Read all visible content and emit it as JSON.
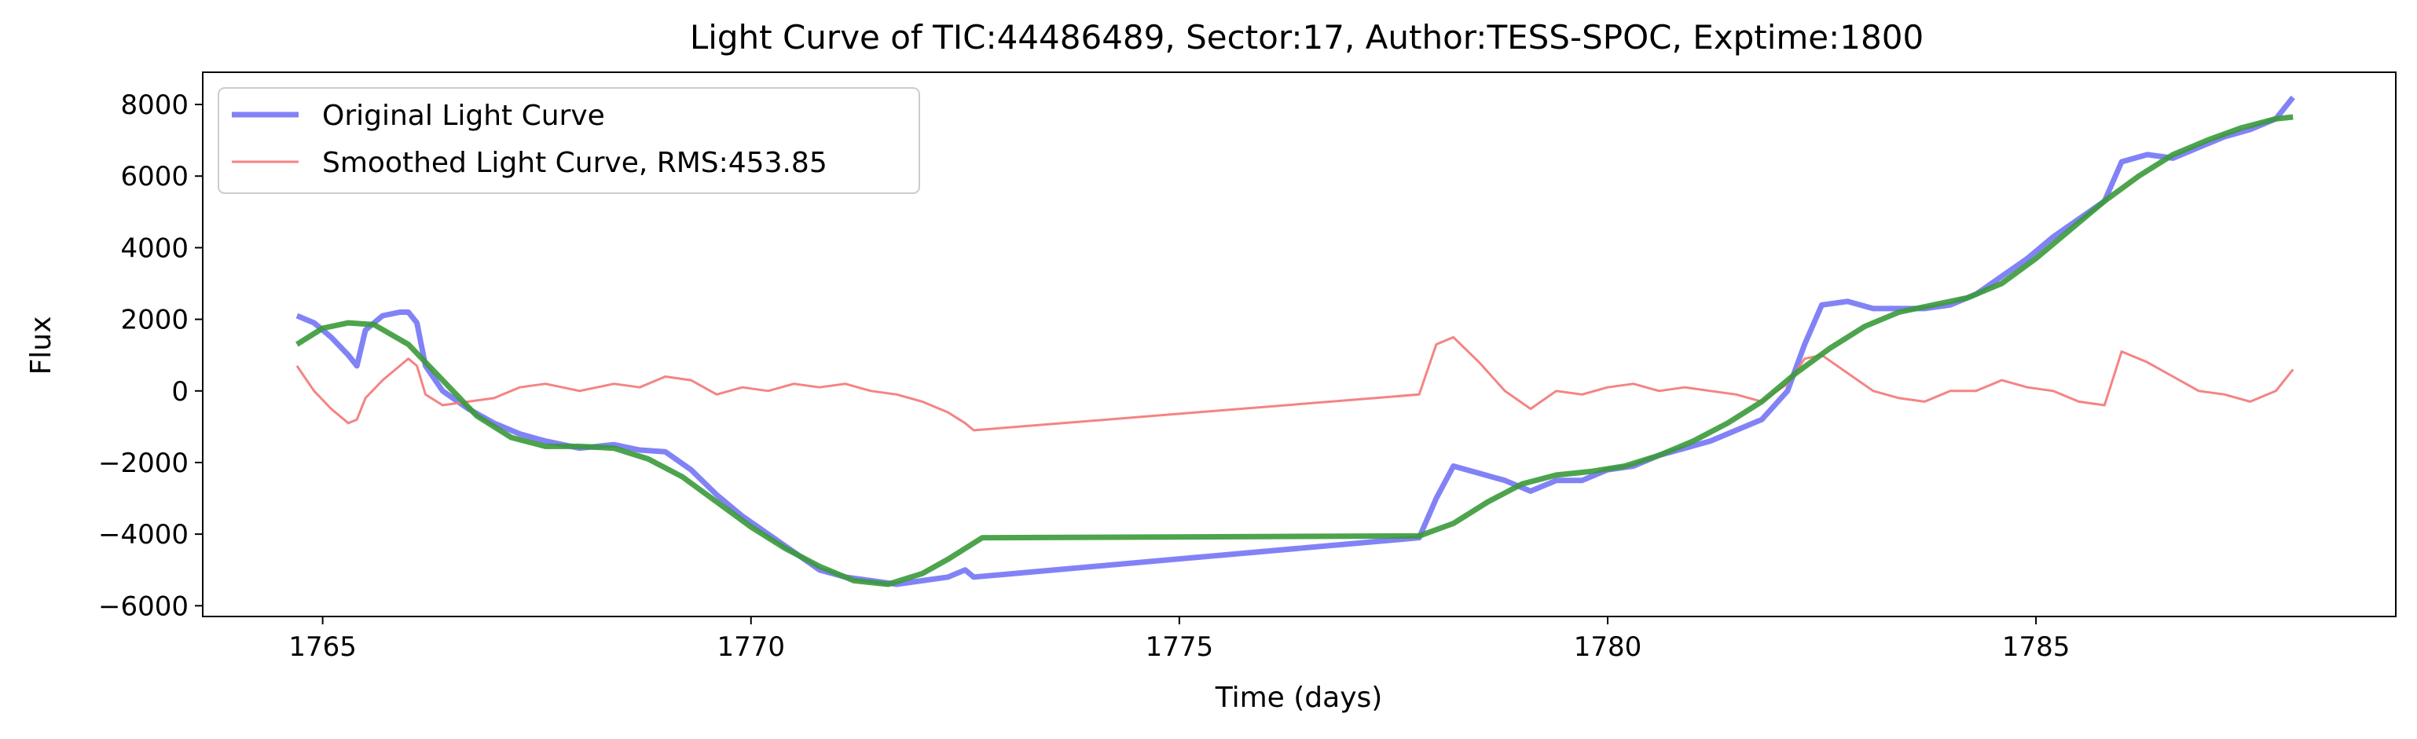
{
  "chart_data": {
    "type": "line",
    "title": "Light Curve of TIC:44486489, Sector:17, Author:TESS-SPOC, Exptime:1800",
    "xlabel": "Time (days)",
    "ylabel": "Flux",
    "xlim": [
      1763.6,
      1789.2
    ],
    "ylim": [
      -6300,
      8900
    ],
    "xticks": [
      1765,
      1770,
      1775,
      1780,
      1785
    ],
    "yticks": [
      -6000,
      -4000,
      -2000,
      0,
      2000,
      4000,
      6000,
      8000
    ],
    "grid": false,
    "legend_position": "top-left",
    "legend": [
      {
        "label": "Original Light Curve",
        "color": "#7b7bf7"
      },
      {
        "label": "Smoothed Light Curve, RMS:453.85",
        "color": "#f47c7c"
      }
    ],
    "series": [
      {
        "name": "Original Light Curve",
        "color": "#7b7bf7",
        "points": [
          [
            1764.7,
            2100
          ],
          [
            1764.9,
            1900
          ],
          [
            1765.1,
            1500
          ],
          [
            1765.3,
            1000
          ],
          [
            1765.4,
            700
          ],
          [
            1765.5,
            1700
          ],
          [
            1765.7,
            2100
          ],
          [
            1765.9,
            2200
          ],
          [
            1766.0,
            2200
          ],
          [
            1766.1,
            1900
          ],
          [
            1766.2,
            700
          ],
          [
            1766.4,
            0
          ],
          [
            1766.7,
            -500
          ],
          [
            1767.0,
            -900
          ],
          [
            1767.3,
            -1200
          ],
          [
            1767.6,
            -1400
          ],
          [
            1768.0,
            -1600
          ],
          [
            1768.4,
            -1500
          ],
          [
            1768.7,
            -1650
          ],
          [
            1769.0,
            -1700
          ],
          [
            1769.3,
            -2200
          ],
          [
            1769.6,
            -2900
          ],
          [
            1769.9,
            -3500
          ],
          [
            1770.2,
            -4000
          ],
          [
            1770.5,
            -4500
          ],
          [
            1770.8,
            -5000
          ],
          [
            1771.1,
            -5200
          ],
          [
            1771.4,
            -5300
          ],
          [
            1771.7,
            -5400
          ],
          [
            1772.0,
            -5300
          ],
          [
            1772.3,
            -5200
          ],
          [
            1772.5,
            -5000
          ],
          [
            1772.6,
            -5200
          ],
          [
            1777.8,
            -4100
          ],
          [
            1778.0,
            -3000
          ],
          [
            1778.2,
            -2100
          ],
          [
            1778.5,
            -2300
          ],
          [
            1778.8,
            -2500
          ],
          [
            1779.1,
            -2800
          ],
          [
            1779.4,
            -2500
          ],
          [
            1779.7,
            -2500
          ],
          [
            1780.0,
            -2200
          ],
          [
            1780.3,
            -2100
          ],
          [
            1780.6,
            -1800
          ],
          [
            1780.9,
            -1600
          ],
          [
            1781.2,
            -1400
          ],
          [
            1781.5,
            -1100
          ],
          [
            1781.8,
            -800
          ],
          [
            1782.1,
            0
          ],
          [
            1782.3,
            1300
          ],
          [
            1782.5,
            2400
          ],
          [
            1782.8,
            2500
          ],
          [
            1783.1,
            2300
          ],
          [
            1783.4,
            2300
          ],
          [
            1783.7,
            2300
          ],
          [
            1784.0,
            2400
          ],
          [
            1784.3,
            2700
          ],
          [
            1784.6,
            3200
          ],
          [
            1784.9,
            3700
          ],
          [
            1785.2,
            4300
          ],
          [
            1785.5,
            4800
          ],
          [
            1785.8,
            5300
          ],
          [
            1786.0,
            6400
          ],
          [
            1786.3,
            6600
          ],
          [
            1786.6,
            6500
          ],
          [
            1786.9,
            6800
          ],
          [
            1787.2,
            7100
          ],
          [
            1787.5,
            7300
          ],
          [
            1787.8,
            7600
          ],
          [
            1788.0,
            8200
          ]
        ]
      },
      {
        "name": "Smoothed Light Curve, RMS:453.85",
        "color": "#f47c7c",
        "points": [
          [
            1764.7,
            700
          ],
          [
            1764.9,
            0
          ],
          [
            1765.1,
            -500
          ],
          [
            1765.3,
            -900
          ],
          [
            1765.4,
            -800
          ],
          [
            1765.5,
            -200
          ],
          [
            1765.7,
            300
          ],
          [
            1765.9,
            700
          ],
          [
            1766.0,
            900
          ],
          [
            1766.1,
            700
          ],
          [
            1766.2,
            -100
          ],
          [
            1766.4,
            -400
          ],
          [
            1766.7,
            -300
          ],
          [
            1767.0,
            -200
          ],
          [
            1767.3,
            100
          ],
          [
            1767.6,
            200
          ],
          [
            1768.0,
            0
          ],
          [
            1768.4,
            200
          ],
          [
            1768.7,
            100
          ],
          [
            1769.0,
            400
          ],
          [
            1769.3,
            300
          ],
          [
            1769.6,
            -100
          ],
          [
            1769.9,
            100
          ],
          [
            1770.2,
            0
          ],
          [
            1770.5,
            200
          ],
          [
            1770.8,
            100
          ],
          [
            1771.1,
            200
          ],
          [
            1771.4,
            0
          ],
          [
            1771.7,
            -100
          ],
          [
            1772.0,
            -300
          ],
          [
            1772.3,
            -600
          ],
          [
            1772.5,
            -900
          ],
          [
            1772.6,
            -1100
          ],
          [
            1777.8,
            -100
          ],
          [
            1778.0,
            1300
          ],
          [
            1778.2,
            1500
          ],
          [
            1778.5,
            800
          ],
          [
            1778.8,
            0
          ],
          [
            1779.1,
            -500
          ],
          [
            1779.4,
            0
          ],
          [
            1779.7,
            -100
          ],
          [
            1780.0,
            100
          ],
          [
            1780.3,
            200
          ],
          [
            1780.6,
            0
          ],
          [
            1780.9,
            100
          ],
          [
            1781.2,
            0
          ],
          [
            1781.5,
            -100
          ],
          [
            1781.8,
            -300
          ],
          [
            1782.1,
            200
          ],
          [
            1782.3,
            900
          ],
          [
            1782.5,
            1000
          ],
          [
            1782.8,
            500
          ],
          [
            1783.1,
            0
          ],
          [
            1783.4,
            -200
          ],
          [
            1783.7,
            -300
          ],
          [
            1784.0,
            0
          ],
          [
            1784.3,
            0
          ],
          [
            1784.6,
            300
          ],
          [
            1784.9,
            100
          ],
          [
            1785.2,
            0
          ],
          [
            1785.5,
            -300
          ],
          [
            1785.8,
            -400
          ],
          [
            1786.0,
            1100
          ],
          [
            1786.3,
            800
          ],
          [
            1786.6,
            400
          ],
          [
            1786.9,
            0
          ],
          [
            1787.2,
            -100
          ],
          [
            1787.5,
            -300
          ],
          [
            1787.8,
            0
          ],
          [
            1788.0,
            600
          ]
        ]
      },
      {
        "color": "#3a9a3a",
        "points": [
          [
            1764.7,
            1300
          ],
          [
            1765.0,
            1750
          ],
          [
            1765.3,
            1900
          ],
          [
            1765.6,
            1850
          ],
          [
            1766.0,
            1300
          ],
          [
            1766.4,
            300
          ],
          [
            1766.8,
            -700
          ],
          [
            1767.2,
            -1300
          ],
          [
            1767.6,
            -1550
          ],
          [
            1768.0,
            -1550
          ],
          [
            1768.4,
            -1600
          ],
          [
            1768.8,
            -1900
          ],
          [
            1769.2,
            -2400
          ],
          [
            1769.6,
            -3100
          ],
          [
            1770.0,
            -3800
          ],
          [
            1770.4,
            -4400
          ],
          [
            1770.8,
            -4900
          ],
          [
            1771.2,
            -5300
          ],
          [
            1771.6,
            -5400
          ],
          [
            1772.0,
            -5100
          ],
          [
            1772.3,
            -4700
          ],
          [
            1772.7,
            -4100
          ],
          [
            1777.8,
            -4050
          ],
          [
            1778.2,
            -3700
          ],
          [
            1778.6,
            -3100
          ],
          [
            1779.0,
            -2600
          ],
          [
            1779.4,
            -2350
          ],
          [
            1779.8,
            -2250
          ],
          [
            1780.2,
            -2100
          ],
          [
            1780.6,
            -1800
          ],
          [
            1781.0,
            -1400
          ],
          [
            1781.4,
            -900
          ],
          [
            1781.8,
            -300
          ],
          [
            1782.2,
            500
          ],
          [
            1782.6,
            1200
          ],
          [
            1783.0,
            1800
          ],
          [
            1783.4,
            2200
          ],
          [
            1783.8,
            2400
          ],
          [
            1784.2,
            2600
          ],
          [
            1784.6,
            3000
          ],
          [
            1785.0,
            3700
          ],
          [
            1785.4,
            4500
          ],
          [
            1785.8,
            5300
          ],
          [
            1786.2,
            6000
          ],
          [
            1786.6,
            6600
          ],
          [
            1787.0,
            7000
          ],
          [
            1787.4,
            7350
          ],
          [
            1787.8,
            7600
          ],
          [
            1788.0,
            7650
          ]
        ]
      }
    ]
  }
}
